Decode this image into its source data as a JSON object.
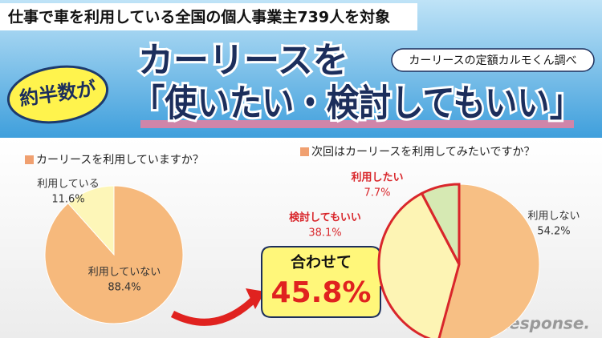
{
  "header": {
    "subtitle": "仕事で車を利用している全国の個人事業主739人を対象",
    "badge": "約半数が",
    "headline1": "カーリースを",
    "headline2": "「使いたい・検討してもいい」",
    "source": "カーリースの定額カルモくん調べ"
  },
  "callout": {
    "title": "合わせて",
    "value": 45.8,
    "value_label": "45.8%"
  },
  "watermark": "Response.",
  "chart_data": [
    {
      "type": "pie",
      "title": "カーリースを利用していますか？",
      "categories": [
        "利用している",
        "利用していない"
      ],
      "values": [
        11.6,
        88.4
      ],
      "value_labels": [
        "11.6%",
        "88.4%"
      ],
      "colors": [
        "#fdf6b8",
        "#f6b97c"
      ]
    },
    {
      "type": "pie",
      "title": "次回はカーリースを利用してみたいですか？",
      "categories": [
        "利用したい",
        "検討してもいい",
        "利用しない"
      ],
      "values": [
        7.7,
        38.1,
        54.2
      ],
      "value_labels": [
        "7.7%",
        "38.1%",
        "54.2%"
      ],
      "colors": [
        "#d6e9b3",
        "#fdf4b4",
        "#f7bf84"
      ],
      "outline": [
        true,
        true,
        false
      ],
      "outline_color": "#d9262b"
    }
  ]
}
